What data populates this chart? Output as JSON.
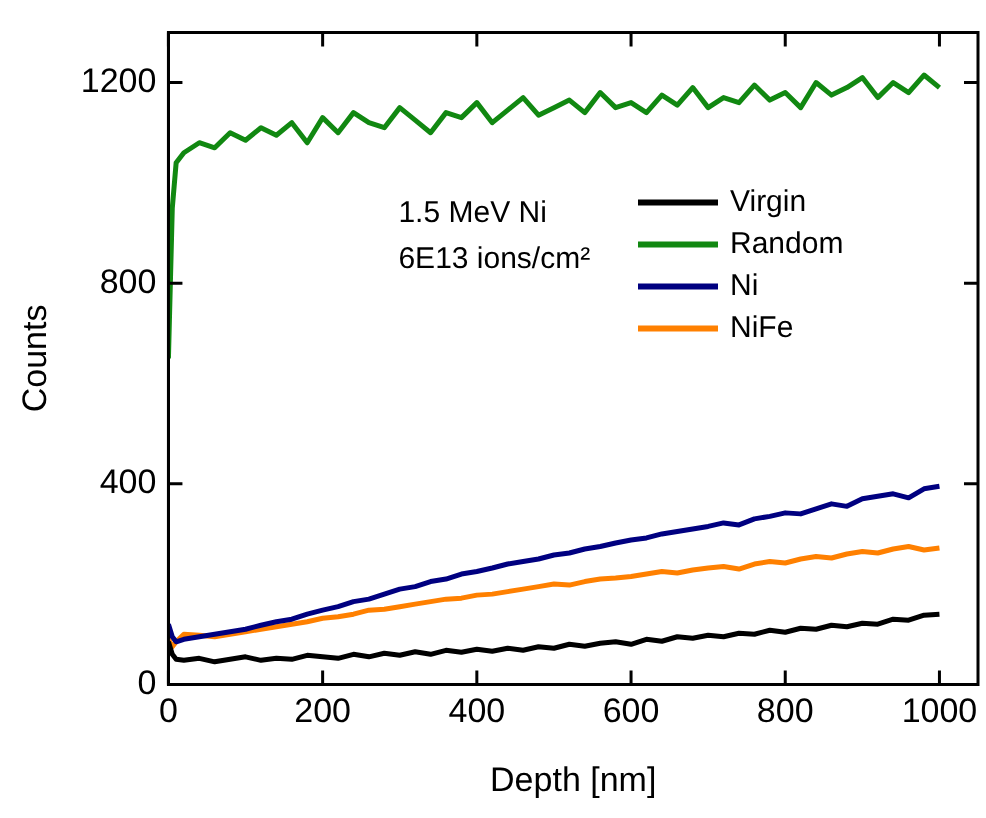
{
  "chart_data": {
    "type": "line",
    "xlabel": "Depth [nm]",
    "ylabel": "Counts",
    "annotations": [
      "1.5 MeV Ni",
      "6E13 ions/cm²"
    ],
    "x": [
      0,
      5,
      10,
      20,
      40,
      60,
      80,
      100,
      120,
      140,
      160,
      180,
      200,
      220,
      240,
      260,
      280,
      300,
      320,
      340,
      360,
      380,
      400,
      420,
      440,
      460,
      480,
      500,
      520,
      540,
      560,
      580,
      600,
      620,
      640,
      660,
      680,
      700,
      720,
      740,
      760,
      780,
      800,
      820,
      840,
      860,
      880,
      900,
      920,
      940,
      960,
      980,
      1000
    ],
    "series": [
      {
        "name": "Virgin",
        "color": "#000000",
        "values": [
          85,
          60,
          50,
          48,
          52,
          45,
          50,
          55,
          48,
          52,
          50,
          58,
          55,
          52,
          60,
          55,
          62,
          58,
          65,
          60,
          68,
          64,
          70,
          66,
          72,
          68,
          75,
          72,
          80,
          76,
          82,
          85,
          80,
          90,
          86,
          95,
          92,
          98,
          95,
          102,
          100,
          108,
          104,
          112,
          110,
          118,
          115,
          122,
          120,
          130,
          128,
          138,
          140
        ]
      },
      {
        "name": "Random",
        "color": "#118811",
        "values": [
          650,
          950,
          1040,
          1060,
          1080,
          1070,
          1100,
          1085,
          1110,
          1095,
          1120,
          1080,
          1130,
          1100,
          1140,
          1120,
          1110,
          1150,
          1125,
          1100,
          1140,
          1130,
          1160,
          1120,
          1145,
          1170,
          1135,
          1150,
          1165,
          1140,
          1180,
          1150,
          1160,
          1140,
          1175,
          1155,
          1190,
          1150,
          1170,
          1160,
          1195,
          1165,
          1180,
          1150,
          1200,
          1175,
          1190,
          1210,
          1170,
          1200,
          1180,
          1215,
          1190
        ]
      },
      {
        "name": "Ni",
        "color": "#000080",
        "values": [
          120,
          95,
          85,
          90,
          95,
          100,
          105,
          110,
          118,
          125,
          130,
          140,
          148,
          155,
          165,
          170,
          180,
          190,
          195,
          205,
          210,
          220,
          225,
          232,
          240,
          245,
          250,
          258,
          262,
          270,
          275,
          282,
          288,
          292,
          300,
          305,
          310,
          315,
          322,
          318,
          330,
          335,
          342,
          340,
          350,
          360,
          355,
          370,
          375,
          380,
          372,
          390,
          395
        ]
      },
      {
        "name": "NiFe",
        "color": "#ff8000",
        "values": [
          90,
          75,
          85,
          100,
          98,
          95,
          100,
          105,
          110,
          115,
          120,
          125,
          132,
          135,
          140,
          148,
          150,
          155,
          160,
          165,
          170,
          172,
          178,
          180,
          185,
          190,
          195,
          200,
          198,
          205,
          210,
          212,
          215,
          220,
          225,
          222,
          228,
          232,
          235,
          230,
          240,
          245,
          242,
          250,
          255,
          252,
          260,
          265,
          262,
          270,
          275,
          268,
          272
        ]
      }
    ],
    "xlim": [
      0,
      1050
    ],
    "xticks": [
      0,
      200,
      400,
      600,
      800,
      1000
    ],
    "ylim": [
      0,
      1300
    ],
    "yticks": [
      0,
      400,
      800,
      1200
    ],
    "grid": false,
    "legend": "right",
    "marker": "none",
    "line_style": "solid"
  }
}
